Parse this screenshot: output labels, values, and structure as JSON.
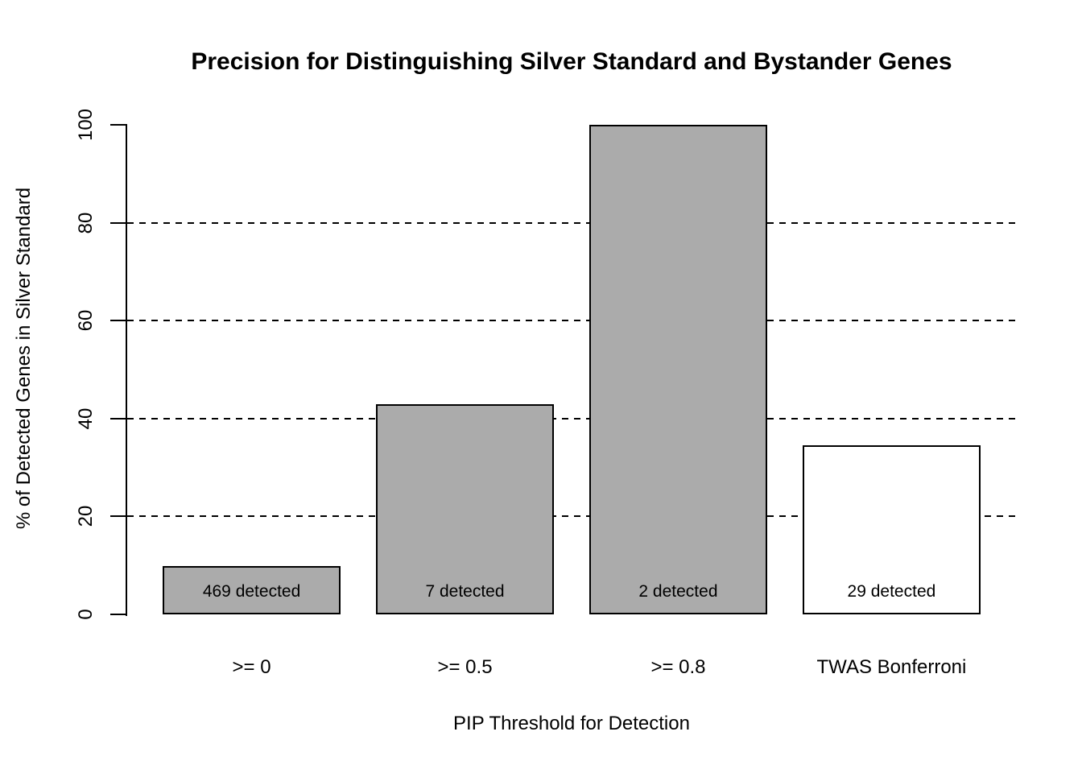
{
  "chart_data": {
    "type": "bar",
    "title": "Precision for Distinguishing Silver Standard and Bystander Genes",
    "xlabel": "PIP Threshold for Detection",
    "ylabel": "% of Detected Genes in Silver Standard",
    "categories": [
      ">= 0",
      ">= 0.5",
      ">= 0.8",
      "TWAS Bonferroni"
    ],
    "values": [
      9.9,
      42.9,
      100,
      34.5
    ],
    "bar_labels": [
      "469 detected",
      "7 detected",
      "2 detected",
      "29 detected"
    ],
    "bar_colors": [
      "#ababab",
      "#ababab",
      "#ababab",
      "#ffffff"
    ],
    "bar_border_color": "#000000",
    "ylim": [
      0,
      100
    ],
    "yticks": [
      0,
      20,
      40,
      60,
      80,
      100
    ],
    "gridlines": {
      "values": [
        20,
        40,
        60,
        80
      ],
      "style": "dashed",
      "color": "#000000"
    },
    "legend": "none",
    "bar_gap_ratio": 0.2
  }
}
